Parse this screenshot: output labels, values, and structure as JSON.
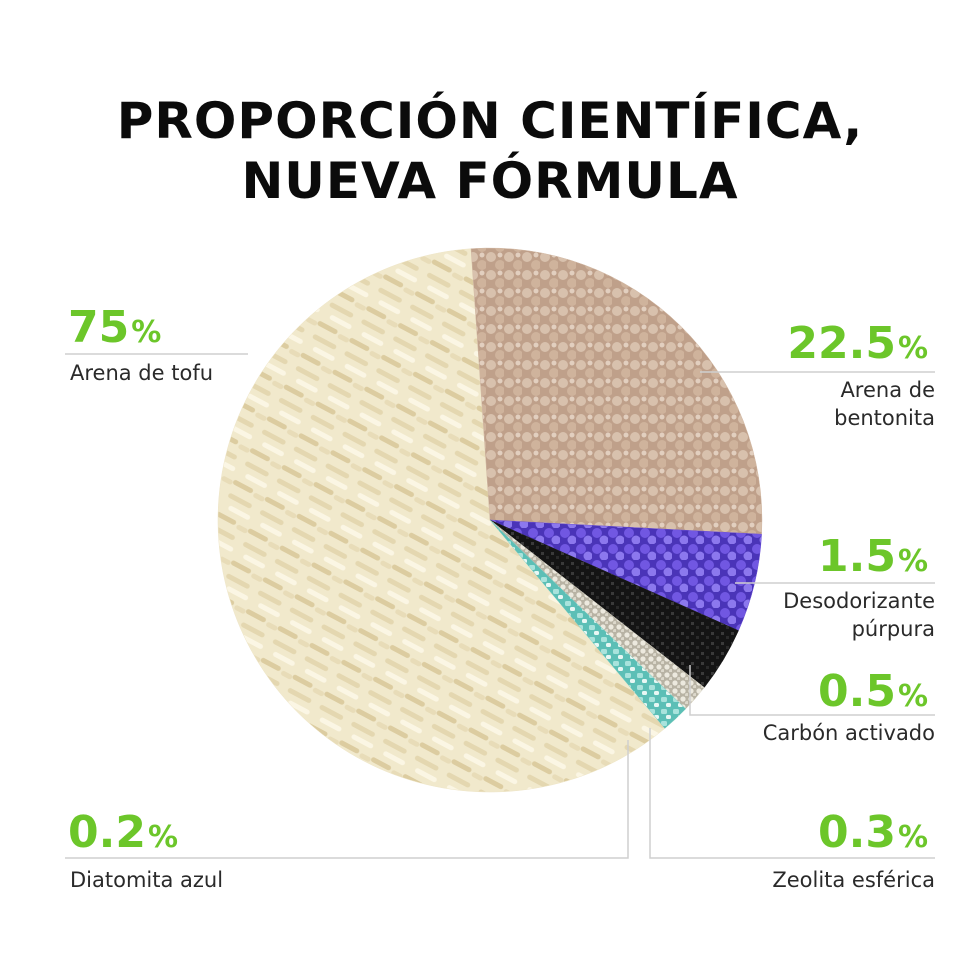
{
  "title": {
    "line1": "PROPORCIÓN CIENTÍFICA,",
    "line2": "NUEVA FÓRMULA"
  },
  "chart_data": {
    "type": "pie",
    "title": "PROPORCIÓN CIENTÍFICA, NUEVA FÓRMULA",
    "unit": "%",
    "slices": [
      {
        "label": "Arena de tofu",
        "value": 75,
        "display": "75",
        "color": "#efe6c8",
        "texture": "tofu-strands"
      },
      {
        "label": "Arena de bentonita",
        "value": 22.5,
        "display": "22.5",
        "color": "#d2b8a3",
        "texture": "beige-pellets"
      },
      {
        "label": "Desodorizante púrpura",
        "value": 1.5,
        "display": "1.5",
        "color": "#6a4fd6",
        "texture": "purple-beads"
      },
      {
        "label": "Carbón activado",
        "value": 0.5,
        "display": "0.5",
        "color": "#1c1c1c",
        "texture": "black-granules"
      },
      {
        "label": "Zeolita esférica",
        "value": 0.3,
        "display": "0.3",
        "color": "#d9d6c8",
        "texture": "small-spheres"
      },
      {
        "label": "Diatomita azul",
        "value": 0.2,
        "display": "0.2",
        "color": "#7dcfc6",
        "texture": "turquoise-chunks"
      }
    ],
    "percent_symbol": "%",
    "legend": "callouts around pie",
    "accent_color": "#6cc62a"
  },
  "callouts": {
    "tofu": {
      "pct": "75",
      "label": "Arena de tofu"
    },
    "bentonita": {
      "pct": "22.5",
      "label1": "Arena de",
      "label2": "bentonita"
    },
    "purpura": {
      "pct": "1.5",
      "label1": "Desodorizante",
      "label2": "púrpura"
    },
    "carbon": {
      "pct": "0.5",
      "label": "Carbón activado"
    },
    "diatomita": {
      "pct": "0.2",
      "label": "Diatomita azul"
    },
    "zeolita": {
      "pct": "0.3",
      "label": "Zeolita esférica"
    },
    "symbol": "%"
  }
}
